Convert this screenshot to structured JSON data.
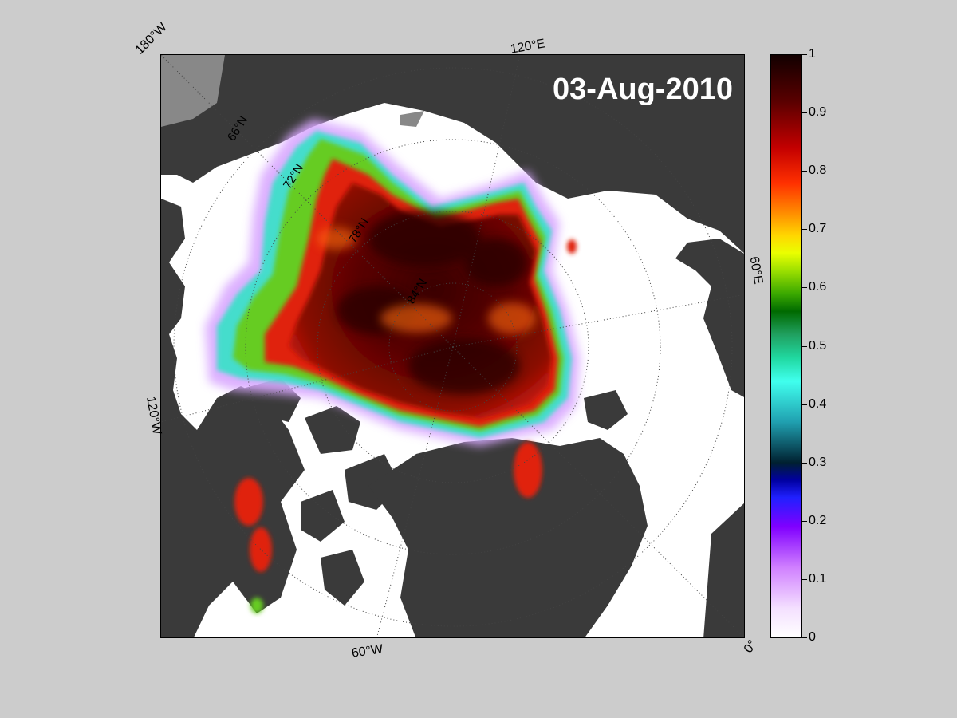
{
  "map": {
    "date": "03-Aug-2010",
    "longitude_labels": [
      "180°W",
      "120°E",
      "60°E",
      "0°",
      "60°W",
      "120°W"
    ],
    "latitude_labels": [
      "66°N",
      "72°N",
      "78°N",
      "84°N"
    ]
  },
  "colorbar": {
    "ticks": [
      "1",
      "0.9",
      "0.8",
      "0.7",
      "0.6",
      "0.5",
      "0.4",
      "0.3",
      "0.2",
      "0.1",
      "0"
    ]
  }
}
